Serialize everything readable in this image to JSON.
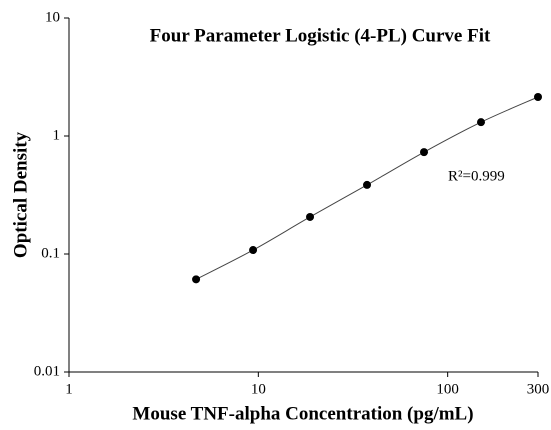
{
  "chart_data": {
    "type": "scatter",
    "title": "Four Parameter Logistic (4-PL) Curve Fit",
    "x_label": "Mouse TNF-alpha Concentration (pg/mL)",
    "y_label": "Optical Density",
    "annotation": "R²=0.999",
    "x": [
      4.69,
      9.38,
      18.75,
      37.5,
      75,
      150,
      300
    ],
    "values": [
      0.061,
      0.108,
      0.206,
      0.385,
      0.73,
      1.31,
      2.14
    ],
    "color": "#000000",
    "fit_curve": true,
    "xlog": true,
    "ylog": true,
    "xlim": [
      1,
      300
    ],
    "xticks": [
      1,
      10,
      100,
      300
    ],
    "ylim": [
      0.01,
      10
    ],
    "yticks": [
      0.01,
      0.1,
      1,
      10
    ],
    "grid": false
  }
}
